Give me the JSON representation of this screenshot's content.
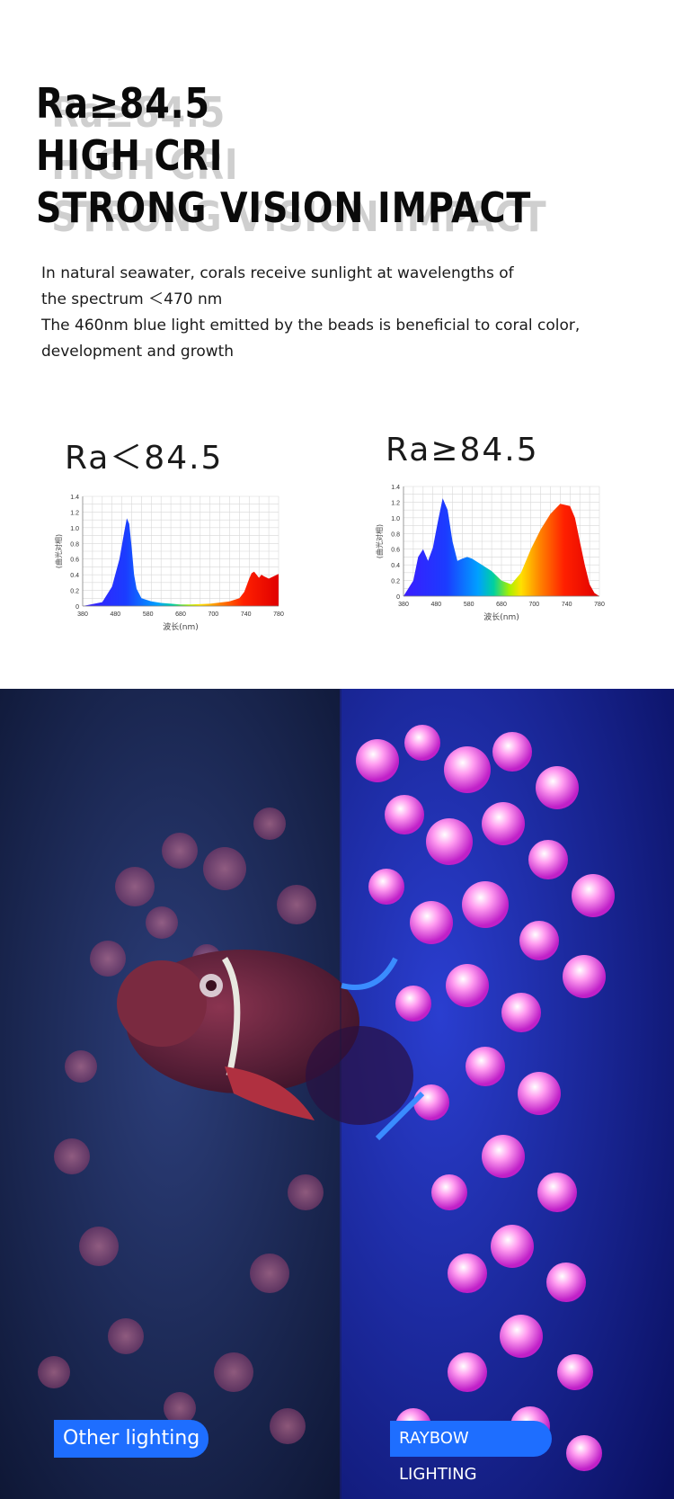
{
  "heading": {
    "line1": "Ra≥84.5",
    "line2": "HIGH CRI",
    "line3": "STRONG VISION IMPACT"
  },
  "description": {
    "para1_line1": "In natural seawater, corals receive sunlight at wavelengths of",
    "para1_line2": "the spectrum ＜470 nm",
    "para2_line1": "The 460nm blue light emitted by the beads is beneficial to coral color,",
    "para2_line2": "development and growth"
  },
  "comparison": {
    "left_label": "Other lighting",
    "right_label": "RAYBOW LIGHTING"
  },
  "colors": {
    "label_bg": "#1e6eff",
    "left_photo_tint": "#1b2d5e",
    "right_photo_tint": "#1a2fb8"
  },
  "chart_data": [
    {
      "type": "area",
      "title": "Ra＜84.5",
      "xlabel": "波长(nm)",
      "ylabel": "(曲光对相)",
      "xlim": [
        380,
        780
      ],
      "ylim": [
        0,
        1.4
      ],
      "x_ticks": [
        "380",
        "480",
        "580",
        "680",
        "700",
        "740",
        "780"
      ],
      "y_ticks": [
        "0",
        "0.2",
        "0.4",
        "0.6",
        "0.8",
        "1.0",
        "1.2",
        "1.4"
      ],
      "grid": true,
      "series": [
        {
          "x": [
            380,
            420,
            440,
            455,
            465,
            470,
            475,
            480,
            485,
            490,
            500,
            520,
            540,
            560,
            580,
            600,
            640,
            680,
            700,
            710,
            720,
            725,
            730,
            735,
            740,
            745,
            750,
            760,
            770,
            780
          ],
          "values": [
            0.0,
            0.05,
            0.25,
            0.6,
            0.95,
            1.12,
            1.05,
            0.75,
            0.4,
            0.22,
            0.1,
            0.06,
            0.04,
            0.03,
            0.02,
            0.02,
            0.03,
            0.06,
            0.1,
            0.18,
            0.35,
            0.42,
            0.44,
            0.4,
            0.36,
            0.4,
            0.38,
            0.35,
            0.38,
            0.41
          ]
        }
      ]
    },
    {
      "type": "area",
      "title": "Ra≥84.5",
      "xlabel": "波长(nm)",
      "ylabel": "(曲光对相)",
      "xlim": [
        380,
        780
      ],
      "ylim": [
        0,
        1.4
      ],
      "x_ticks": [
        "380",
        "480",
        "580",
        "680",
        "700",
        "740",
        "780"
      ],
      "y_ticks": [
        "0",
        "0.2",
        "0.4",
        "0.6",
        "0.8",
        "1.0",
        "1.2",
        "1.4"
      ],
      "grid": true,
      "series": [
        {
          "x": [
            380,
            400,
            410,
            420,
            430,
            440,
            450,
            460,
            470,
            480,
            490,
            500,
            510,
            520,
            530,
            540,
            550,
            560,
            580,
            600,
            620,
            640,
            660,
            680,
            700,
            720,
            730,
            740,
            750,
            760,
            770,
            780
          ],
          "values": [
            0.0,
            0.2,
            0.5,
            0.6,
            0.45,
            0.62,
            0.95,
            1.25,
            1.1,
            0.7,
            0.45,
            0.48,
            0.5,
            0.48,
            0.44,
            0.4,
            0.36,
            0.32,
            0.2,
            0.15,
            0.3,
            0.6,
            0.85,
            1.05,
            1.18,
            1.15,
            1.0,
            0.7,
            0.4,
            0.15,
            0.04,
            0.0
          ]
        }
      ]
    }
  ]
}
